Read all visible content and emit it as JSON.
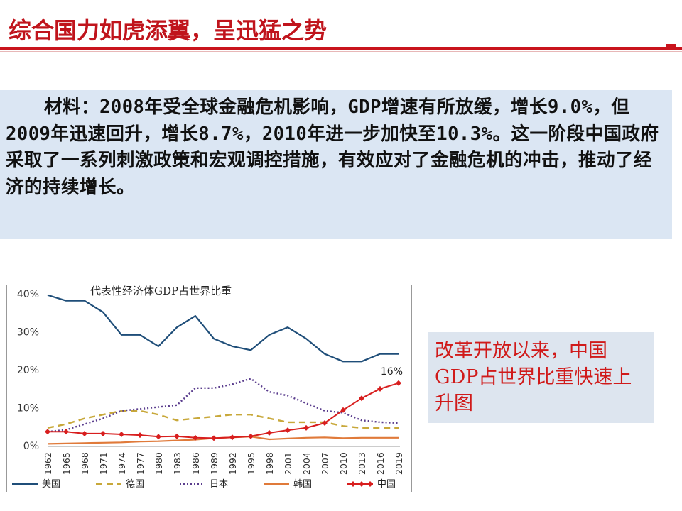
{
  "slide": {
    "title": "综合国力如虎添翼，呈迅猛之势"
  },
  "material": {
    "text": "材料：2008年受全球金融危机影响，GDP增速有所放缓，增长9.0%，但2009年迅速回升，增长8.7%，2010年进一步加快至10.3%。这一阶段中国政府采取了一系列刺激政策和宏观调控措施，有效应对了金融危机的冲击，推动了经济的持续增长。"
  },
  "caption": {
    "text": "改革开放以来，中国GDP占世界比重快速上升图"
  },
  "chart_data": {
    "type": "line",
    "title": "代表性经济体GDP占世界比重",
    "x": [
      1962,
      1965,
      1968,
      1971,
      1974,
      1977,
      1980,
      1983,
      1986,
      1989,
      1992,
      1995,
      1998,
      2001,
      2004,
      2007,
      2010,
      2013,
      2016,
      2019
    ],
    "ylim": [
      0,
      40
    ],
    "yticks": [
      "0%",
      "10%",
      "20%",
      "30%",
      "40%"
    ],
    "grid": false,
    "legend_position": "bottom",
    "series": [
      {
        "name": "美国",
        "color": "#1f4e79",
        "style": "solid",
        "values": [
          39.5,
          38,
          38,
          35,
          29,
          29,
          26,
          31,
          34,
          28,
          26,
          25,
          29,
          31,
          28,
          24,
          22,
          22,
          24,
          24
        ]
      },
      {
        "name": "德国",
        "color": "#c8a83a",
        "style": "dashed",
        "values": [
          4.5,
          5.5,
          7,
          8,
          9,
          9,
          8,
          6.5,
          7,
          7.5,
          8,
          8,
          7,
          6,
          6,
          6,
          5,
          4.5,
          4.5,
          4.5
        ]
      },
      {
        "name": "日本",
        "color": "#5b3e8e",
        "style": "dotted",
        "values": [
          3.5,
          4,
          5.5,
          7,
          9,
          9.5,
          10,
          10.5,
          15,
          15,
          16,
          17.5,
          14,
          13,
          11,
          9,
          8.5,
          6.5,
          6,
          5.8
        ]
      },
      {
        "name": "韩国",
        "color": "#e07a3a",
        "style": "solid",
        "values": [
          0.3,
          0.4,
          0.5,
          0.6,
          0.7,
          0.9,
          1.0,
          1.2,
          1.4,
          1.8,
          2.0,
          2.2,
          1.5,
          1.7,
          1.9,
          2.0,
          1.8,
          1.9,
          1.9,
          1.9
        ]
      },
      {
        "name": "中国",
        "color": "#d81e1e",
        "style": "marker",
        "values": [
          3.5,
          3.5,
          3,
          3,
          2.8,
          2.6,
          2.2,
          2.3,
          1.9,
          1.8,
          2,
          2.3,
          3.2,
          3.9,
          4.5,
          5.8,
          9.2,
          12.3,
          14.8,
          16.3
        ]
      }
    ],
    "annotations": [
      {
        "text": "16%",
        "series": "中国"
      }
    ]
  }
}
